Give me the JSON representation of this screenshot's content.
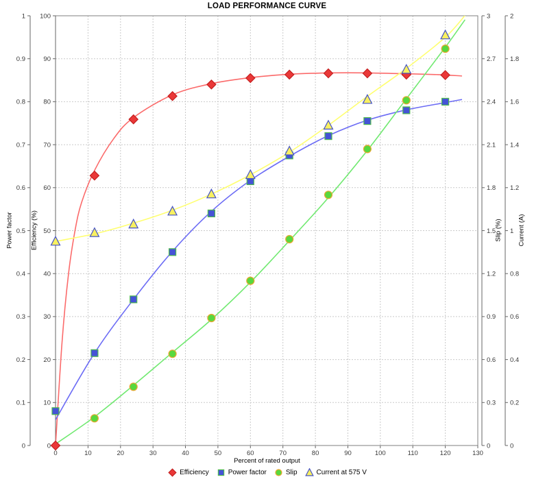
{
  "chart_data": {
    "type": "line",
    "title": "LOAD PERFORMANCE CURVE",
    "xlabel": "Percent of rated output",
    "xlim": [
      0,
      130
    ],
    "x_ticks": [
      "0",
      "10",
      "20",
      "30",
      "40",
      "50",
      "60",
      "70",
      "80",
      "90",
      "100",
      "110",
      "120",
      "130"
    ],
    "grid": true,
    "legend_position": "bottom",
    "colors": {
      "gridline": "#c9c9c9",
      "plot_border": "#7f7f7f",
      "axis_line": "#666666",
      "tick_label": "#3a3a3a",
      "background": "#ffffff"
    },
    "x": [
      0,
      12,
      24,
      36,
      48,
      60,
      72,
      84,
      96,
      108,
      120
    ],
    "axes": {
      "power_factor": {
        "label": "Power factor",
        "range": [
          0,
          1
        ],
        "ticks": [
          "0",
          "0.1",
          "0.2",
          "0.3",
          "0.4",
          "0.5",
          "0.6",
          "0.7",
          "0.8",
          "0.9",
          "1"
        ],
        "side": "left"
      },
      "efficiency": {
        "label": "Efficiency (%)",
        "range": [
          0,
          100
        ],
        "ticks": [
          "0",
          "10",
          "20",
          "30",
          "40",
          "50",
          "60",
          "70",
          "80",
          "90",
          "100"
        ],
        "side": "left"
      },
      "slip": {
        "label": "Slip (%)",
        "range": [
          0,
          3
        ],
        "ticks": [
          "0",
          "0.3",
          "0.6",
          "0.9",
          "1.2",
          "1.5",
          "1.8",
          "2.1",
          "2.4",
          "2.7",
          "3"
        ],
        "side": "right"
      },
      "current": {
        "label": "Current (A)",
        "range": [
          0,
          2
        ],
        "ticks": [
          "0",
          "0.2",
          "0.4",
          "0.6",
          "0.8",
          "1",
          "1.2",
          "1.4",
          "1.6",
          "1.8",
          "2"
        ],
        "side": "right"
      }
    },
    "series": [
      {
        "name": "Efficiency",
        "axis": "efficiency",
        "marker": "diamond",
        "fill": "#ea3838",
        "outline": "#c42020",
        "line": "#fb6a6a",
        "values": [
          0,
          62.8,
          75.9,
          81.3,
          84.0,
          85.5,
          86.3,
          86.6,
          86.6,
          86.3,
          86.2
        ],
        "curve": [
          [
            0,
            0
          ],
          [
            2,
            24
          ],
          [
            4,
            40
          ],
          [
            6,
            50
          ],
          [
            8,
            56.5
          ],
          [
            12,
            64
          ],
          [
            18,
            71.5
          ],
          [
            24,
            76.3
          ],
          [
            36,
            81.6
          ],
          [
            48,
            84.2
          ],
          [
            60,
            85.6
          ],
          [
            72,
            86.4
          ],
          [
            84,
            86.7
          ],
          [
            96,
            86.7
          ],
          [
            108,
            86.5
          ],
          [
            118,
            86.3
          ],
          [
            125,
            86.0
          ]
        ]
      },
      {
        "name": "Power factor",
        "axis": "power_factor",
        "marker": "square",
        "fill": "#4553d6",
        "outline": "#4fba4f",
        "line": "#6b6bf5",
        "values": [
          0.08,
          0.215,
          0.34,
          0.45,
          0.54,
          0.615,
          0.675,
          0.72,
          0.755,
          0.78,
          0.8
        ],
        "curve": [
          [
            0,
            0.06
          ],
          [
            12,
            0.215
          ],
          [
            24,
            0.34
          ],
          [
            36,
            0.452
          ],
          [
            48,
            0.545
          ],
          [
            60,
            0.617
          ],
          [
            72,
            0.673
          ],
          [
            84,
            0.721
          ],
          [
            96,
            0.757
          ],
          [
            108,
            0.781
          ],
          [
            120,
            0.798
          ],
          [
            125,
            0.805
          ]
        ]
      },
      {
        "name": "Slip",
        "axis": "slip",
        "marker": "circle",
        "fill": "#58d83e",
        "outline": "#eda631",
        "line": "#70e970",
        "values": [
          null,
          0.19,
          0.41,
          0.64,
          0.89,
          1.15,
          1.44,
          1.75,
          2.07,
          2.41,
          2.77
        ],
        "curve": [
          [
            0,
            0.01
          ],
          [
            12,
            0.2
          ],
          [
            24,
            0.42
          ],
          [
            36,
            0.65
          ],
          [
            48,
            0.88
          ],
          [
            60,
            1.14
          ],
          [
            72,
            1.43
          ],
          [
            84,
            1.73
          ],
          [
            96,
            2.06
          ],
          [
            108,
            2.42
          ],
          [
            120,
            2.78
          ],
          [
            126,
            2.97
          ]
        ]
      },
      {
        "name": "Current at 575 V",
        "axis": "current",
        "marker": "triangle",
        "fill": "#f8f060",
        "outline": "#4553c6",
        "line": "#ffff70",
        "values": [
          0.95,
          0.99,
          1.03,
          1.09,
          1.17,
          1.26,
          1.37,
          1.49,
          1.61,
          1.75,
          1.91
        ],
        "curve": [
          [
            0,
            0.95
          ],
          [
            12,
            0.985
          ],
          [
            24,
            1.035
          ],
          [
            36,
            1.095
          ],
          [
            48,
            1.17
          ],
          [
            60,
            1.26
          ],
          [
            72,
            1.365
          ],
          [
            84,
            1.49
          ],
          [
            96,
            1.625
          ],
          [
            108,
            1.755
          ],
          [
            120,
            1.9
          ],
          [
            126,
            2.0
          ]
        ]
      }
    ]
  }
}
